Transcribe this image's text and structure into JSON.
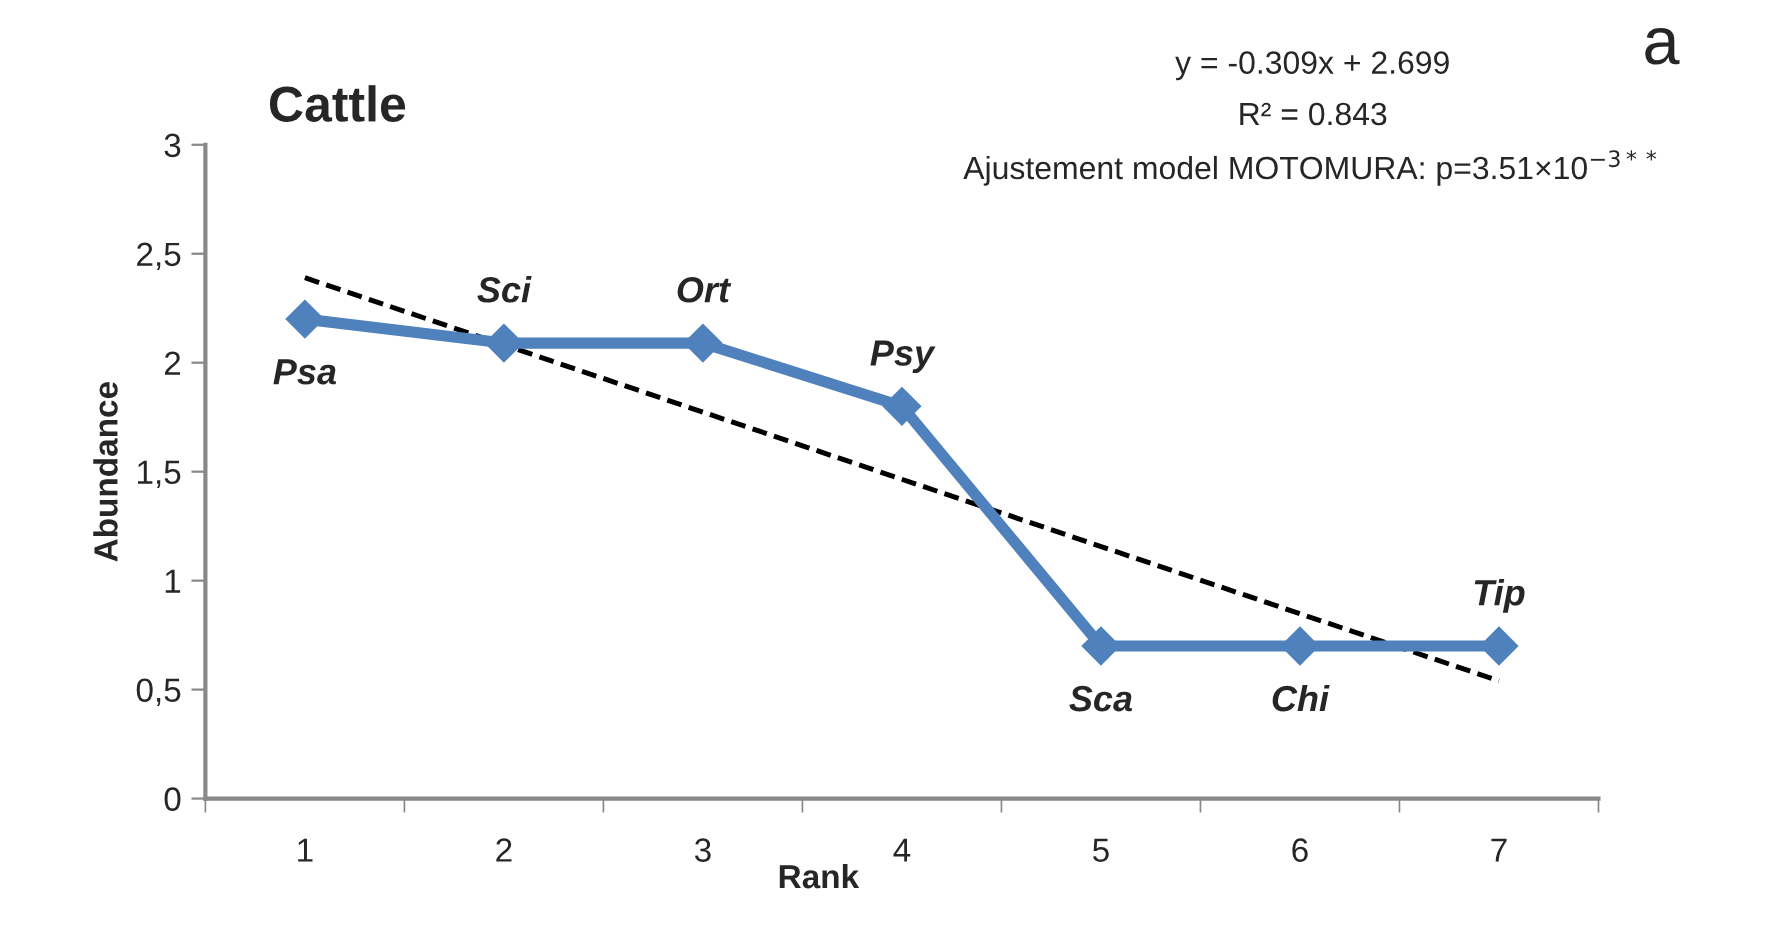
{
  "chart_data": {
    "type": "line",
    "title": "Cattle",
    "xlabel": "Rank",
    "ylabel": "Abundance",
    "categories": [
      "1",
      "2",
      "3",
      "4",
      "5",
      "6",
      "7"
    ],
    "series": [
      {
        "color": "#4f81bd",
        "values": [
          2.2,
          2.09,
          2.09,
          1.8,
          0.7,
          0.7,
          0.7
        ],
        "marker": "diamond",
        "line_style": "solid"
      },
      {
        "type": "line",
        "color": "#000000",
        "x": [
          "1",
          "7"
        ],
        "values": [
          2.39,
          0.54
        ],
        "marker": "none",
        "line_style": "dashed"
      }
    ],
    "ylim": [
      0,
      3
    ],
    "yticks": [
      {
        "value": 0,
        "label": "0"
      },
      {
        "value": 0.5,
        "label": "0,5"
      },
      {
        "value": 1,
        "label": "1"
      },
      {
        "value": 1.5,
        "label": "1,5"
      },
      {
        "value": 2,
        "label": "2"
      },
      {
        "value": 2.5,
        "label": "2,5"
      },
      {
        "value": 3,
        "label": "3"
      }
    ],
    "grid": false,
    "annotations": [
      {
        "text": "Psa",
        "x": "1",
        "y": 2.2
      },
      {
        "text": "Sci",
        "x": "2",
        "y": 2.09
      },
      {
        "text": "Ort",
        "x": "3",
        "y": 2.09
      },
      {
        "text": "Psy",
        "x": "4",
        "y": 1.8
      },
      {
        "text": "Sca",
        "x": "5",
        "y": 0.7
      },
      {
        "text": "Chi",
        "x": "6",
        "y": 0.7
      },
      {
        "text": "Tip",
        "x": "7",
        "y": 0.7
      },
      "y = -0.309x + 2.699",
      "R² = 0.843",
      "Ajustement model MOTOMURA: p=3.51×10$^{−3**}$",
      "a"
    ]
  }
}
